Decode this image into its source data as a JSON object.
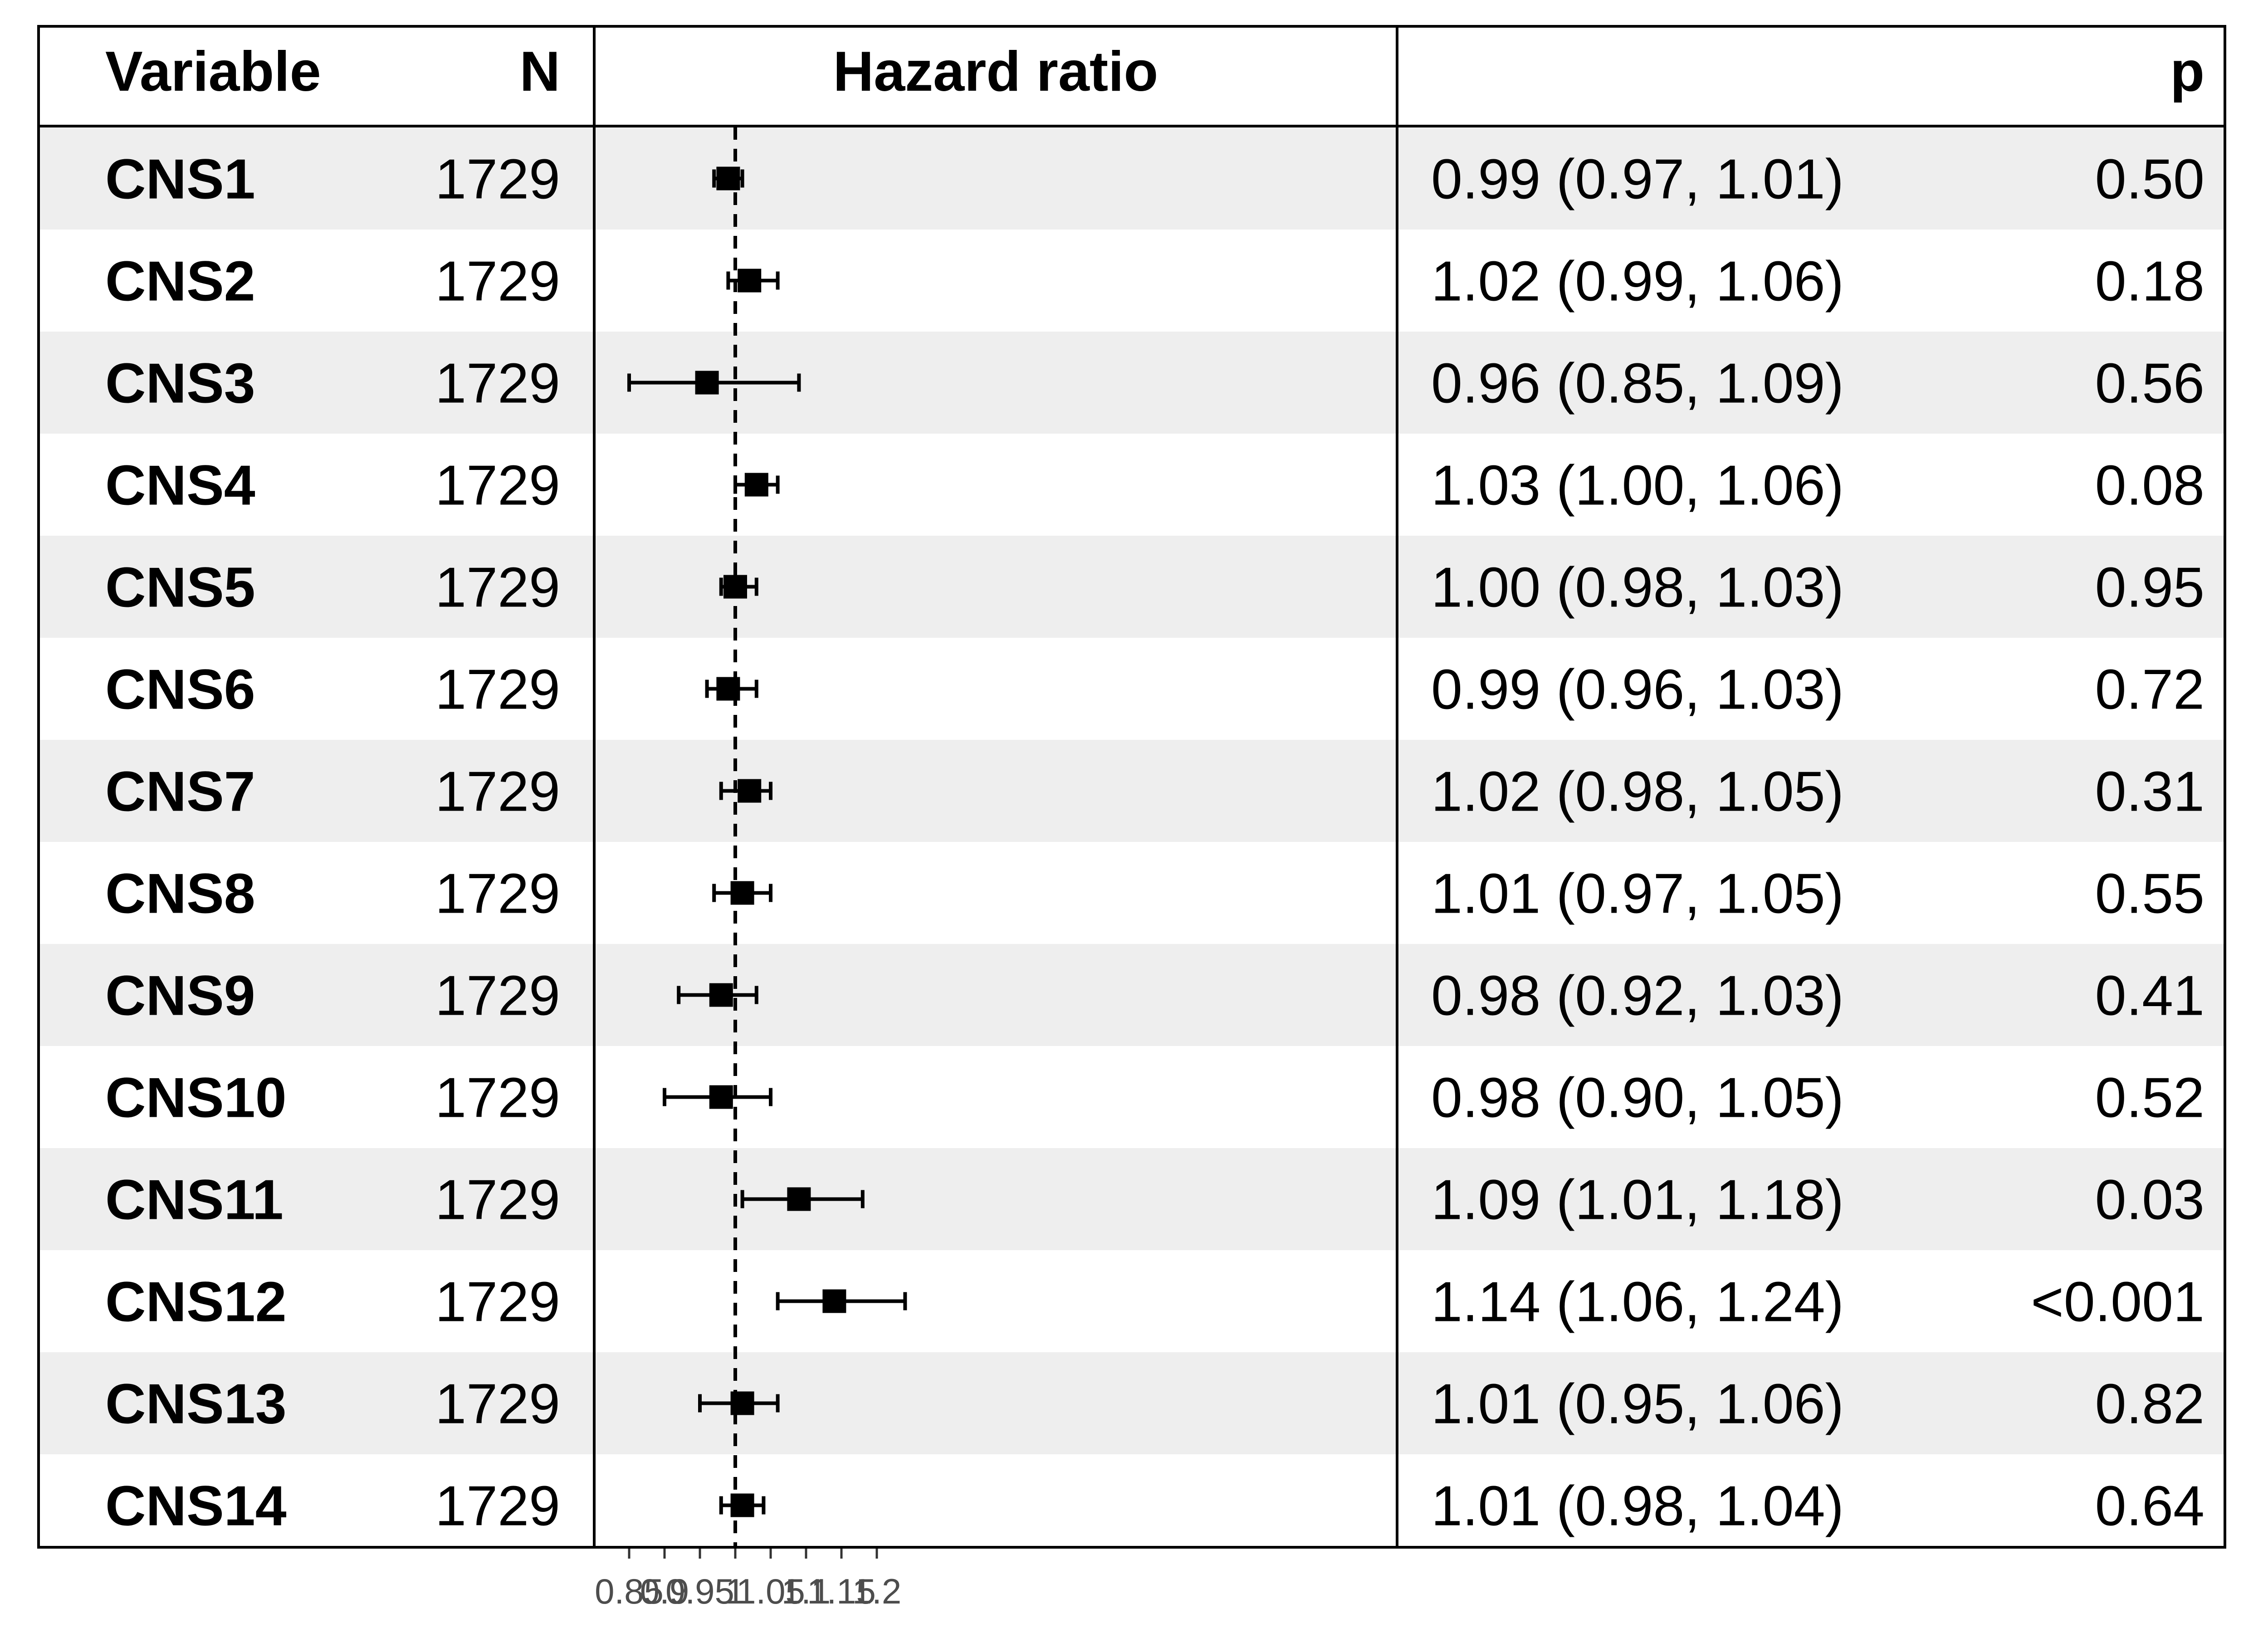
{
  "headers": {
    "variable": "Variable",
    "n": "N",
    "hazard_ratio": "Hazard ratio",
    "estimate": "",
    "p": "p"
  },
  "colors": {
    "stripe": "#eeeeee",
    "point": "#000000",
    "tick_text": "#4d4d4d"
  },
  "chart_data": {
    "type": "forest",
    "x": {
      "ticks": [
        0.85,
        0.9,
        0.95,
        1,
        1.05,
        1.1,
        1.15,
        1.2
      ],
      "tick_labels": [
        "0.85",
        "0.9",
        "0.95",
        "1",
        "1.05",
        "1.1",
        "1.15",
        "1.2"
      ],
      "range": [
        0.84,
        1.25
      ],
      "reference_line": 1
    },
    "rows": [
      {
        "variable": "CNS1",
        "n": "1729",
        "hr": 0.99,
        "lower": 0.97,
        "upper": 1.01,
        "estimate": "0.99 (0.97, 1.01)",
        "p": "0.50"
      },
      {
        "variable": "CNS2",
        "n": "1729",
        "hr": 1.02,
        "lower": 0.99,
        "upper": 1.06,
        "estimate": "1.02 (0.99, 1.06)",
        "p": "0.18"
      },
      {
        "variable": "CNS3",
        "n": "1729",
        "hr": 0.96,
        "lower": 0.85,
        "upper": 1.09,
        "estimate": "0.96 (0.85, 1.09)",
        "p": "0.56"
      },
      {
        "variable": "CNS4",
        "n": "1729",
        "hr": 1.03,
        "lower": 1.0,
        "upper": 1.06,
        "estimate": "1.03 (1.00, 1.06)",
        "p": "0.08"
      },
      {
        "variable": "CNS5",
        "n": "1729",
        "hr": 1.0,
        "lower": 0.98,
        "upper": 1.03,
        "estimate": "1.00 (0.98, 1.03)",
        "p": "0.95"
      },
      {
        "variable": "CNS6",
        "n": "1729",
        "hr": 0.99,
        "lower": 0.96,
        "upper": 1.03,
        "estimate": "0.99 (0.96, 1.03)",
        "p": "0.72"
      },
      {
        "variable": "CNS7",
        "n": "1729",
        "hr": 1.02,
        "lower": 0.98,
        "upper": 1.05,
        "estimate": "1.02 (0.98, 1.05)",
        "p": "0.31"
      },
      {
        "variable": "CNS8",
        "n": "1729",
        "hr": 1.01,
        "lower": 0.97,
        "upper": 1.05,
        "estimate": "1.01 (0.97, 1.05)",
        "p": "0.55"
      },
      {
        "variable": "CNS9",
        "n": "1729",
        "hr": 0.98,
        "lower": 0.92,
        "upper": 1.03,
        "estimate": "0.98 (0.92, 1.03)",
        "p": "0.41"
      },
      {
        "variable": "CNS10",
        "n": "1729",
        "hr": 0.98,
        "lower": 0.9,
        "upper": 1.05,
        "estimate": "0.98 (0.90, 1.05)",
        "p": "0.52"
      },
      {
        "variable": "CNS11",
        "n": "1729",
        "hr": 1.09,
        "lower": 1.01,
        "upper": 1.18,
        "estimate": "1.09 (1.01, 1.18)",
        "p": "0.03"
      },
      {
        "variable": "CNS12",
        "n": "1729",
        "hr": 1.14,
        "lower": 1.06,
        "upper": 1.24,
        "estimate": "1.14 (1.06, 1.24)",
        "p": "<0.001"
      },
      {
        "variable": "CNS13",
        "n": "1729",
        "hr": 1.01,
        "lower": 0.95,
        "upper": 1.06,
        "estimate": "1.01 (0.95, 1.06)",
        "p": "0.82"
      },
      {
        "variable": "CNS14",
        "n": "1729",
        "hr": 1.01,
        "lower": 0.98,
        "upper": 1.04,
        "estimate": "1.01 (0.98, 1.04)",
        "p": "0.64"
      }
    ]
  }
}
